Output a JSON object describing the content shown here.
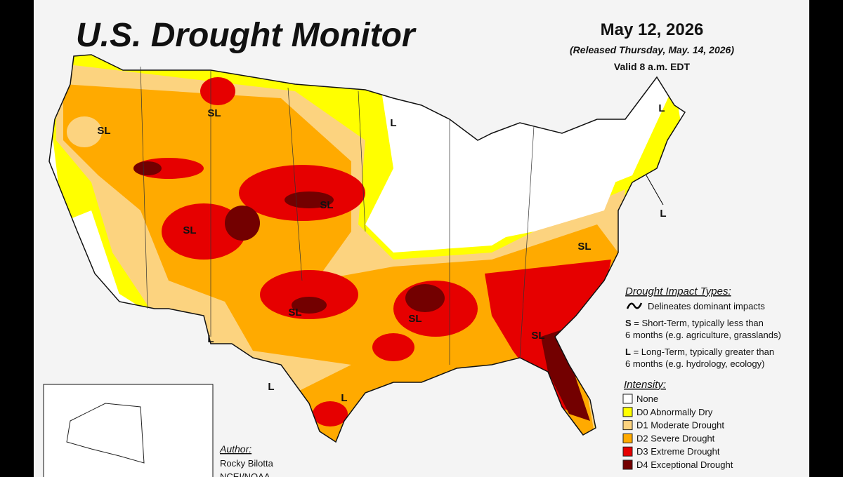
{
  "title": "U.S. Drought Monitor",
  "date": "May 12, 2026",
  "released": "(Released Thursday, May. 14, 2026)",
  "valid": "Valid 8 a.m. EDT",
  "impact_types": {
    "heading": "Drought Impact Types:",
    "delineates": "Delineates dominant impacts",
    "short_term": {
      "code": "S",
      "line1": "= Short-Term, typically less than",
      "line2": "6 months (e.g. agriculture, grasslands)"
    },
    "long_term": {
      "code": "L",
      "line1": "= Long-Term, typically greater than",
      "line2": "6 months (e.g. hydrology, ecology)"
    }
  },
  "intensity": {
    "heading": "Intensity:",
    "levels": [
      {
        "label": "None",
        "color": "#ffffff"
      },
      {
        "label": "D0 Abnormally Dry",
        "color": "#ffff00"
      },
      {
        "label": "D1 Moderate Drought",
        "color": "#fcd37f"
      },
      {
        "label": "D2 Severe Drought",
        "color": "#ffaa00"
      },
      {
        "label": "D3 Extreme Drought",
        "color": "#e60000"
      },
      {
        "label": "D4 Exceptional Drought",
        "color": "#730000"
      }
    ]
  },
  "author": {
    "heading": "Author:",
    "name": "Rocky Bilotta",
    "org": "NCEI/NOAA"
  },
  "map_labels": [
    "SL",
    "SL",
    "L",
    "L",
    "L",
    "SL",
    "SL",
    "SL",
    "SL",
    "SL",
    "SL",
    "L",
    "L",
    "L"
  ]
}
